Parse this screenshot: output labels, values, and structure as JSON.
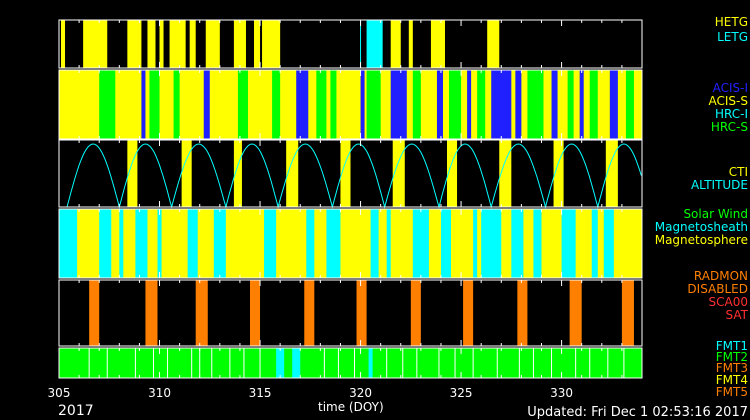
{
  "chart_data": {
    "type": "timeline",
    "year": "2017",
    "xlabel": "time (DOY)",
    "xlim": [
      305,
      334
    ],
    "xticks": [
      305,
      310,
      315,
      320,
      325,
      330
    ],
    "updated": "Updated: Fri Dec  1 02:53:16 2017",
    "colors": {
      "yellow": "#ffff00",
      "cyan": "#00ffff",
      "blue": "#2020ff",
      "green": "#00ff00",
      "orange": "#ff7f00",
      "red": "#ff3030",
      "black": "#000000"
    },
    "panels": [
      {
        "name": "grating",
        "legend": [
          {
            "text": "HETG",
            "color": "#ffff00"
          },
          {
            "text": "LETG",
            "color": "#00ffff"
          }
        ],
        "base": "#000000",
        "segments": [
          [
            305.1,
            305.3,
            "#ffff00"
          ],
          [
            306.2,
            307.4,
            "#ffff00"
          ],
          [
            308.4,
            309.1,
            "#ffff00"
          ],
          [
            309.4,
            309.8,
            "#ffff00"
          ],
          [
            310.0,
            310.2,
            "#ffff00"
          ],
          [
            310.5,
            311.3,
            "#ffff00"
          ],
          [
            311.5,
            311.8,
            "#ffff00"
          ],
          [
            312.3,
            313.0,
            "#ffff00"
          ],
          [
            313.7,
            314.3,
            "#ffff00"
          ],
          [
            314.7,
            315.0,
            "#ffff00"
          ],
          [
            315.1,
            316.0,
            "#ffff00"
          ],
          [
            320.3,
            321.1,
            "#00ffff"
          ],
          [
            321.5,
            322.0,
            "#ffff00"
          ],
          [
            322.4,
            322.6,
            "#ffff00"
          ],
          [
            323.5,
            324.2,
            "#ffff00"
          ],
          [
            326.3,
            326.9,
            "#ffff00"
          ]
        ],
        "lines": [
          [
            320.0,
            "#00ffff"
          ]
        ]
      },
      {
        "name": "instrument",
        "legend": [
          {
            "text": "ACIS-I",
            "color": "#2020ff"
          },
          {
            "text": "ACIS-S",
            "color": "#ffff00"
          },
          {
            "text": "HRC-I",
            "color": "#00ffff"
          },
          {
            "text": "HRC-S",
            "color": "#00ff00"
          }
        ],
        "base": "#ffff00",
        "segments": [
          [
            307.0,
            307.8,
            "#00ff00"
          ],
          [
            309.1,
            309.3,
            "#2020ff"
          ],
          [
            309.5,
            310.0,
            "#00ff00"
          ],
          [
            310.7,
            311.0,
            "#00ff00"
          ],
          [
            312.2,
            312.5,
            "#2020ff"
          ],
          [
            313.9,
            314.4,
            "#00ff00"
          ],
          [
            315.6,
            316.0,
            "#00ff00"
          ],
          [
            316.8,
            317.4,
            "#2020ff"
          ],
          [
            317.8,
            318.3,
            "#00ff00"
          ],
          [
            318.5,
            318.8,
            "#00ff00"
          ],
          [
            320.0,
            320.2,
            "#2020ff"
          ],
          [
            320.3,
            321.0,
            "#00ff00"
          ],
          [
            321.5,
            322.3,
            "#2020ff"
          ],
          [
            322.6,
            323.0,
            "#00ff00"
          ],
          [
            323.8,
            324.1,
            "#2020ff"
          ],
          [
            324.4,
            325.0,
            "#00ff00"
          ],
          [
            325.3,
            325.5,
            "#2020ff"
          ],
          [
            325.8,
            326.2,
            "#00ff00"
          ],
          [
            326.5,
            327.5,
            "#2020ff"
          ],
          [
            327.7,
            328.0,
            "#2020ff"
          ],
          [
            328.3,
            329.1,
            "#00ff00"
          ],
          [
            329.5,
            329.8,
            "#2020ff"
          ],
          [
            330.3,
            330.6,
            "#00ff00"
          ],
          [
            330.9,
            331.1,
            "#2020ff"
          ],
          [
            331.4,
            331.8,
            "#00ff00"
          ],
          [
            332.4,
            332.8,
            "#2020ff"
          ],
          [
            333.2,
            333.6,
            "#00ff00"
          ]
        ]
      },
      {
        "name": "altitude",
        "legend": [
          {
            "text": "CTI",
            "color": "#ffff00"
          },
          {
            "text": "ALTITUDE",
            "color": "#00ffff"
          }
        ],
        "base": "#000000",
        "segments": [
          [
            308.4,
            308.9,
            "#ffff00"
          ],
          [
            311.1,
            311.6,
            "#ffff00"
          ],
          [
            313.7,
            314.1,
            "#ffff00"
          ],
          [
            316.3,
            316.9,
            "#ffff00"
          ],
          [
            319.0,
            319.5,
            "#ffff00"
          ],
          [
            321.6,
            322.2,
            "#ffff00"
          ],
          [
            324.3,
            324.8,
            "#ffff00"
          ],
          [
            326.9,
            327.5,
            "#ffff00"
          ],
          [
            329.6,
            330.1,
            "#ffff00"
          ],
          [
            332.2,
            332.8,
            "#ffff00"
          ]
        ],
        "perigees": [
          305.4,
          308.0,
          310.6,
          313.3,
          315.9,
          318.6,
          321.2,
          323.9,
          326.5,
          329.2,
          331.8,
          334.4
        ]
      },
      {
        "name": "region",
        "legend": [
          {
            "text": "Solar Wind",
            "color": "#00ff00"
          },
          {
            "text": "Magnetosheath",
            "color": "#00ffff"
          },
          {
            "text": "Magnetosphere",
            "color": "#ffff00"
          }
        ],
        "base": "#ffff00",
        "segments": [
          [
            305.0,
            305.9,
            "#00ffff"
          ],
          [
            307.0,
            307.6,
            "#00ffff"
          ],
          [
            308.0,
            308.2,
            "#00ffff"
          ],
          [
            308.8,
            309.4,
            "#00ffff"
          ],
          [
            309.9,
            310.1,
            "#00ffff"
          ],
          [
            311.4,
            311.9,
            "#00ffff"
          ],
          [
            312.7,
            313.3,
            "#00ffff"
          ],
          [
            315.2,
            315.8,
            "#00ffff"
          ],
          [
            317.3,
            317.7,
            "#00ffff"
          ],
          [
            318.3,
            319.0,
            "#00ffff"
          ],
          [
            320.5,
            320.9,
            "#00ffff"
          ],
          [
            321.3,
            321.5,
            "#00ffff"
          ],
          [
            322.6,
            323.4,
            "#00ffff"
          ],
          [
            324.0,
            324.5,
            "#00ffff"
          ],
          [
            325.6,
            325.8,
            "#00ffff"
          ],
          [
            326.0,
            327.0,
            "#00ffff"
          ],
          [
            327.5,
            328.1,
            "#00ffff"
          ],
          [
            328.6,
            329.0,
            "#00ffff"
          ],
          [
            330.0,
            330.7,
            "#00ffff"
          ],
          [
            331.5,
            331.8,
            "#00ffff"
          ],
          [
            332.1,
            332.6,
            "#00ffff"
          ]
        ]
      },
      {
        "name": "radiation",
        "legend": [
          {
            "text": "RADMON",
            "color": "#ff7f00"
          },
          {
            "text": "DISABLED",
            "color": "#ff7f00"
          },
          {
            "text": "SCA00",
            "color": "#ff3030"
          },
          {
            "text": "SAT",
            "color": "#ff3030"
          }
        ],
        "base": "#000000",
        "segments": [
          [
            306.5,
            307.0,
            "#ff7f00"
          ],
          [
            309.3,
            309.9,
            "#ff7f00"
          ],
          [
            311.8,
            312.4,
            "#ff7f00"
          ],
          [
            314.5,
            315.0,
            "#ff7f00"
          ],
          [
            317.2,
            317.7,
            "#ff7f00"
          ],
          [
            319.8,
            320.3,
            "#ff7f00"
          ],
          [
            322.5,
            323.0,
            "#ff7f00"
          ],
          [
            325.1,
            325.6,
            "#ff7f00"
          ],
          [
            327.8,
            328.3,
            "#ff7f00"
          ],
          [
            330.4,
            331.0,
            "#ff7f00"
          ],
          [
            333.0,
            333.6,
            "#ff7f00"
          ]
        ]
      },
      {
        "name": "format",
        "legend": [
          {
            "text": "FMT1",
            "color": "#00ffff"
          },
          {
            "text": "FMT2",
            "color": "#00ff00"
          },
          {
            "text": "FMT3",
            "color": "#ff7f00"
          },
          {
            "text": "FMT4",
            "color": "#ffff00"
          },
          {
            "text": "FMT5",
            "color": "#ff7f00"
          }
        ],
        "base": "#00ff00",
        "segments": [
          [
            315.8,
            316.2,
            "#00ffff"
          ],
          [
            316.6,
            317.0,
            "#00ffff"
          ],
          [
            320.4,
            320.6,
            "#00ffff"
          ]
        ],
        "lines": [
          [
            306.5,
            "#ffffff"
          ],
          [
            307.4,
            "#ffffff"
          ],
          [
            308.8,
            "#ffffff"
          ],
          [
            309.7,
            "#ffffff"
          ],
          [
            310.4,
            "#ffffff"
          ],
          [
            311.6,
            "#ffffff"
          ],
          [
            312.0,
            "#ffffff"
          ],
          [
            312.6,
            "#ffffff"
          ],
          [
            313.5,
            "#ffffff"
          ],
          [
            314.2,
            "#ffffff"
          ],
          [
            315.0,
            "#ffffff"
          ],
          [
            318.2,
            "#ffffff"
          ],
          [
            318.9,
            "#ffffff"
          ],
          [
            319.7,
            "#ffffff"
          ],
          [
            321.3,
            "#ffffff"
          ],
          [
            322.1,
            "#ffffff"
          ],
          [
            322.8,
            "#ffffff"
          ],
          [
            323.9,
            "#ffffff"
          ],
          [
            324.7,
            "#ffffff"
          ],
          [
            325.6,
            "#ffffff"
          ],
          [
            326.8,
            "#ffffff"
          ],
          [
            327.9,
            "#ffffff"
          ],
          [
            328.6,
            "#ffffff"
          ],
          [
            329.5,
            "#ffffff"
          ],
          [
            330.7,
            "#ffffff"
          ],
          [
            331.4,
            "#ffffff"
          ],
          [
            332.3,
            "#ffffff"
          ],
          [
            333.1,
            "#ffffff"
          ]
        ]
      }
    ]
  }
}
